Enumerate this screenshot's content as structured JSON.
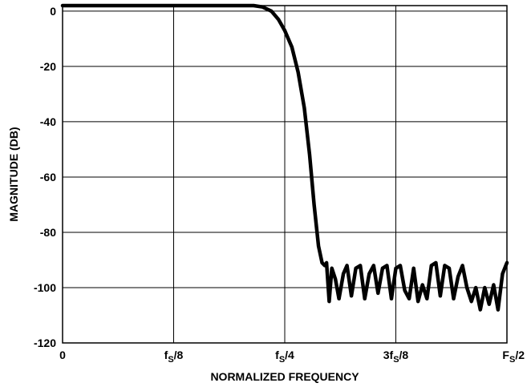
{
  "chart_data": {
    "type": "line",
    "title": "",
    "xlabel": "NORMALIZED FREQUENCY",
    "ylabel": "MAGNITUDE (DB)",
    "xlim": [
      0,
      0.5
    ],
    "ylim": [
      -120,
      2
    ],
    "grid": true,
    "x_ticks": [
      {
        "value": 0,
        "parts": [
          {
            "t": "0",
            "sub": false
          }
        ]
      },
      {
        "value": 0.125,
        "parts": [
          {
            "t": "f",
            "sub": false
          },
          {
            "t": "S",
            "sub": true
          },
          {
            "t": "/8",
            "sub": false
          }
        ]
      },
      {
        "value": 0.25,
        "parts": [
          {
            "t": "f",
            "sub": false
          },
          {
            "t": "S",
            "sub": true
          },
          {
            "t": "/4",
            "sub": false
          }
        ]
      },
      {
        "value": 0.375,
        "parts": [
          {
            "t": "3f",
            "sub": false
          },
          {
            "t": "S",
            "sub": true
          },
          {
            "t": "/8",
            "sub": false
          }
        ]
      },
      {
        "value": 0.5,
        "parts": [
          {
            "t": "F",
            "sub": false
          },
          {
            "t": "S",
            "sub": true
          },
          {
            "t": "/2",
            "sub": false
          }
        ]
      }
    ],
    "y_ticks": [
      {
        "value": 0,
        "label": "0"
      },
      {
        "value": -20,
        "label": "-20"
      },
      {
        "value": -40,
        "label": "-40"
      },
      {
        "value": -60,
        "label": "-60"
      },
      {
        "value": -80,
        "label": "-80"
      },
      {
        "value": -100,
        "label": "-100"
      },
      {
        "value": -120,
        "label": "-120"
      }
    ],
    "series": [
      {
        "x": [
          0.0,
          0.05,
          0.1,
          0.15,
          0.2,
          0.215,
          0.225,
          0.235,
          0.243,
          0.25,
          0.258,
          0.265,
          0.272,
          0.278,
          0.283,
          0.288,
          0.292,
          0.295,
          0.297,
          0.3,
          0.303,
          0.307,
          0.311,
          0.316,
          0.32,
          0.325,
          0.33,
          0.335,
          0.34,
          0.345,
          0.35,
          0.355,
          0.36,
          0.365,
          0.37,
          0.375,
          0.38,
          0.385,
          0.39,
          0.395,
          0.4,
          0.405,
          0.41,
          0.415,
          0.42,
          0.425,
          0.43,
          0.435,
          0.44,
          0.445,
          0.45,
          0.455,
          0.46,
          0.465,
          0.47,
          0.475,
          0.48,
          0.485,
          0.49,
          0.495,
          0.5
        ],
        "values": [
          2,
          2,
          2,
          2,
          2,
          2,
          1.5,
          0,
          -3,
          -7,
          -13,
          -22,
          -35,
          -52,
          -70,
          -85,
          -91,
          -92,
          -91,
          -105,
          -93,
          -97,
          -104,
          -95,
          -92,
          -103,
          -93,
          -92,
          -104,
          -95,
          -92,
          -102,
          -93,
          -92,
          -104,
          -93,
          -92,
          -101,
          -104,
          -93,
          -105,
          -99,
          -104,
          -92,
          -91,
          -103,
          -92,
          -93,
          -104,
          -96,
          -92,
          -100,
          -105,
          -100,
          -108,
          -100,
          -106,
          -99,
          -108,
          -95,
          -91
        ]
      }
    ]
  }
}
